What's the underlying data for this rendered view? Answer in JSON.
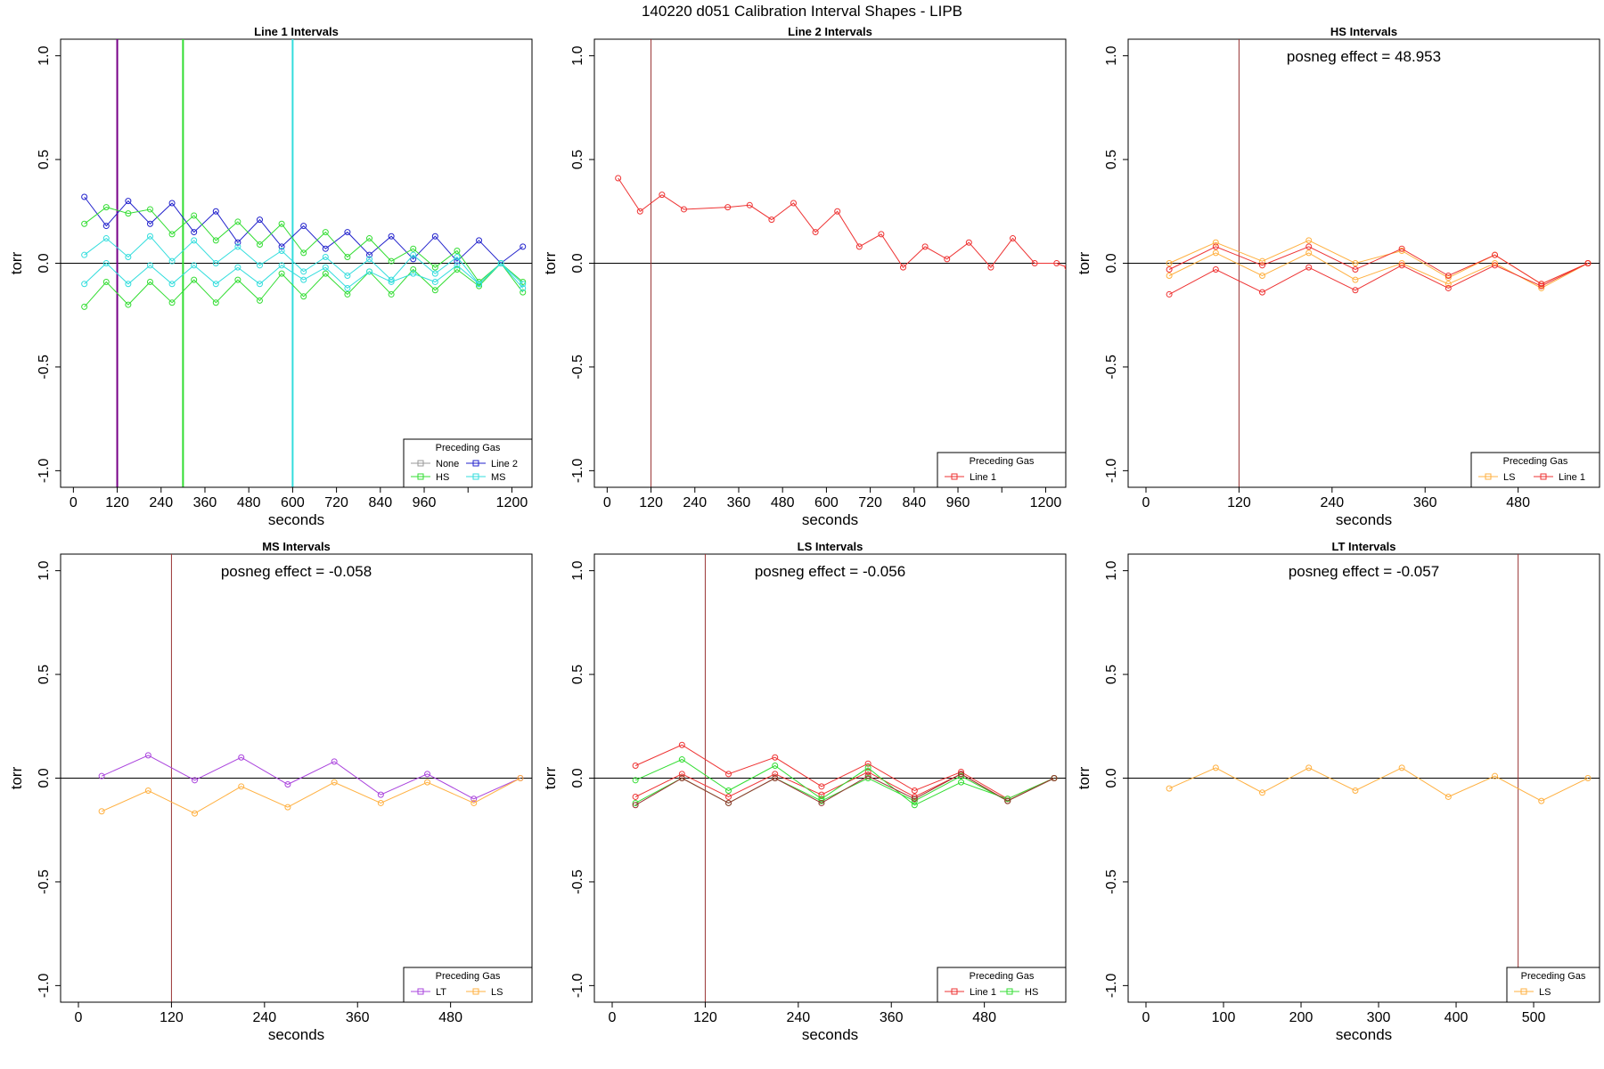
{
  "figure": {
    "title": "140220   d051   Calibration Interval Shapes - LIPB"
  },
  "colors": {
    "None": "#999999",
    "HS": "#33dd33",
    "Line 2": "#2222cc",
    "MS": "#33dddd",
    "Line 1": "#ee3333",
    "LS": "#ffb040",
    "LT": "#aa44dd",
    "dark_red": "#993333",
    "purple_vline": "#770088",
    "black": "#000000"
  },
  "chart_data": [
    {
      "type": "line",
      "title": "Line 1 Intervals",
      "xlabel": "seconds",
      "ylabel": "torr",
      "xlim": [
        -35,
        1255
      ],
      "ylim": [
        -1.08,
        1.08
      ],
      "xticks": [
        0,
        120,
        240,
        360,
        480,
        600,
        720,
        840,
        960,
        1080,
        1200
      ],
      "xtick_labels": [
        "0",
        "120",
        "240",
        "360",
        "480",
        "600",
        "720",
        "840",
        "960",
        "",
        "1200"
      ],
      "yticks": [
        -1.0,
        -0.5,
        0.0,
        0.5,
        1.0
      ],
      "ytick_labels": [
        "-1.0",
        "-0.5",
        "0.0",
        "0.5",
        "1.0"
      ],
      "hline": 0,
      "vlines": [
        {
          "x": 120,
          "color": "purple_vline"
        },
        {
          "x": 300,
          "color": "HS"
        },
        {
          "x": 600,
          "color": "MS"
        }
      ],
      "annotation": "",
      "legend": {
        "title": "Preceding Gas",
        "position": "bottom-right",
        "cols": 2,
        "entries": [
          "None",
          "Line 2",
          "HS",
          "MS"
        ]
      },
      "series": [
        {
          "color": "Line 2",
          "x": [
            30,
            90,
            150,
            210,
            270,
            330,
            390,
            450,
            510,
            570,
            630,
            690,
            750,
            810,
            870,
            930,
            990,
            1050,
            1110,
            1170,
            1230
          ],
          "y": [
            0.32,
            0.18,
            0.3,
            0.19,
            0.29,
            0.15,
            0.25,
            0.1,
            0.21,
            0.08,
            0.18,
            0.07,
            0.15,
            0.04,
            0.13,
            0.02,
            0.13,
            0.01,
            0.11,
            0.0,
            0.08
          ]
        },
        {
          "color": "HS",
          "x": [
            30,
            90,
            150,
            210,
            270,
            330,
            390,
            450,
            510,
            570,
            630,
            690,
            750,
            810,
            870,
            930,
            990,
            1050,
            1110,
            1170,
            1230
          ],
          "y": [
            0.19,
            0.27,
            0.24,
            0.26,
            0.14,
            0.23,
            0.11,
            0.2,
            0.09,
            0.19,
            0.05,
            0.15,
            0.03,
            0.12,
            0.01,
            0.07,
            -0.02,
            0.06,
            -0.09,
            0.0,
            -0.09
          ]
        },
        {
          "color": "HS",
          "x": [
            30,
            90,
            150,
            210,
            270,
            330,
            390,
            450,
            510,
            570,
            630,
            690,
            750,
            810,
            870,
            930,
            990,
            1050,
            1110,
            1170,
            1230
          ],
          "y": [
            -0.21,
            -0.09,
            -0.2,
            -0.09,
            -0.19,
            -0.08,
            -0.19,
            -0.08,
            -0.18,
            -0.05,
            -0.16,
            -0.05,
            -0.15,
            -0.04,
            -0.15,
            -0.03,
            -0.13,
            -0.03,
            -0.11,
            0.0,
            -0.14
          ]
        },
        {
          "color": "MS",
          "x": [
            30,
            90,
            150,
            210,
            270,
            330,
            390,
            450,
            510,
            570,
            630,
            690,
            750,
            810,
            870,
            930,
            990,
            1050,
            1110,
            1170,
            1230
          ],
          "y": [
            0.04,
            0.12,
            0.03,
            0.13,
            0.01,
            0.11,
            0.0,
            0.08,
            -0.01,
            0.06,
            -0.04,
            0.03,
            -0.06,
            0.02,
            -0.08,
            0.04,
            -0.05,
            0.03,
            -0.1,
            0.0,
            -0.1
          ]
        },
        {
          "color": "MS",
          "x": [
            30,
            90,
            150,
            210,
            270,
            330,
            390,
            450,
            510,
            570,
            630,
            690,
            750,
            810,
            870,
            930,
            990,
            1050,
            1110,
            1170,
            1230
          ],
          "y": [
            -0.1,
            0.0,
            -0.1,
            -0.01,
            -0.1,
            -0.01,
            -0.1,
            -0.02,
            -0.1,
            -0.01,
            -0.08,
            -0.02,
            -0.12,
            -0.04,
            -0.09,
            -0.05,
            -0.09,
            -0.01,
            -0.1,
            0.0,
            -0.12
          ]
        }
      ]
    },
    {
      "type": "line",
      "title": "Line 2 Intervals",
      "xlabel": "seconds",
      "ylabel": "torr",
      "xlim": [
        -35,
        1255
      ],
      "ylim": [
        -1.08,
        1.08
      ],
      "xticks": [
        0,
        120,
        240,
        360,
        480,
        600,
        720,
        840,
        960,
        1080,
        1200
      ],
      "xtick_labels": [
        "0",
        "120",
        "240",
        "360",
        "480",
        "600",
        "720",
        "840",
        "960",
        "",
        "1200"
      ],
      "yticks": [
        -1.0,
        -0.5,
        0.0,
        0.5,
        1.0
      ],
      "ytick_labels": [
        "-1.0",
        "-0.5",
        "0.0",
        "0.5",
        "1.0"
      ],
      "hline": 0,
      "vlines": [
        {
          "x": 120,
          "color": "dark_red"
        }
      ],
      "annotation": "",
      "legend": {
        "title": "Preceding Gas",
        "position": "bottom-right",
        "cols": 1,
        "entries": [
          "Line 1"
        ]
      },
      "series": [
        {
          "color": "Line 1",
          "x": [
            30,
            90,
            150,
            210,
            330,
            390,
            450,
            510,
            570,
            630,
            690,
            750,
            810,
            870,
            930,
            990,
            1050,
            1110,
            1170,
            1230,
            1260
          ],
          "y": [
            0.41,
            0.25,
            0.33,
            0.26,
            0.27,
            0.28,
            0.21,
            0.29,
            0.15,
            0.25,
            0.08,
            0.14,
            -0.02,
            0.08,
            0.02,
            0.1,
            -0.02,
            0.12,
            0.0,
            0.0,
            -0.02
          ]
        }
      ]
    },
    {
      "type": "line",
      "title": "HS Intervals",
      "xlabel": "seconds",
      "ylabel": "torr",
      "xlim": [
        -23,
        585
      ],
      "ylim": [
        -1.08,
        1.08
      ],
      "xticks": [
        0,
        120,
        240,
        360,
        480
      ],
      "xtick_labels": [
        "0",
        "120",
        "240",
        "360",
        "480"
      ],
      "yticks": [
        -1.0,
        -0.5,
        0.0,
        0.5,
        1.0
      ],
      "ytick_labels": [
        "-1.0",
        "-0.5",
        "0.0",
        "0.5",
        "1.0"
      ],
      "hline": 0,
      "vlines": [
        {
          "x": 120,
          "color": "dark_red"
        }
      ],
      "annotation": "posneg effect = 48.953",
      "legend": {
        "title": "Preceding Gas",
        "position": "bottom-right",
        "cols": 2,
        "entries": [
          "LS",
          "Line 1"
        ]
      },
      "series": [
        {
          "color": "LS",
          "x": [
            30,
            90,
            150,
            210,
            270,
            330,
            390,
            450,
            510,
            570
          ],
          "y": [
            -0.06,
            0.05,
            -0.06,
            0.05,
            -0.08,
            0.0,
            -0.1,
            0.0,
            -0.12,
            0.0
          ]
        },
        {
          "color": "LS",
          "x": [
            30,
            90,
            150,
            210,
            270,
            330,
            390,
            450,
            510,
            570
          ],
          "y": [
            0.0,
            0.1,
            0.01,
            0.11,
            0.0,
            0.06,
            -0.07,
            0.04,
            -0.1,
            0.0
          ]
        },
        {
          "color": "Line 1",
          "x": [
            30,
            90,
            150,
            210,
            270,
            330,
            390,
            450,
            510,
            570
          ],
          "y": [
            -0.15,
            -0.03,
            -0.14,
            -0.02,
            -0.13,
            -0.01,
            -0.12,
            -0.01,
            -0.11,
            0.0
          ]
        },
        {
          "color": "Line 1",
          "x": [
            30,
            90,
            150,
            210,
            270,
            330,
            390,
            450,
            510,
            570
          ],
          "y": [
            -0.03,
            0.08,
            -0.01,
            0.08,
            -0.03,
            0.07,
            -0.06,
            0.04,
            -0.1,
            0.0
          ]
        }
      ]
    },
    {
      "type": "line",
      "title": "MS Intervals",
      "xlabel": "seconds",
      "ylabel": "torr",
      "xlim": [
        -23,
        585
      ],
      "ylim": [
        -1.08,
        1.08
      ],
      "xticks": [
        0,
        120,
        240,
        360,
        480
      ],
      "xtick_labels": [
        "0",
        "120",
        "240",
        "360",
        "480"
      ],
      "yticks": [
        -1.0,
        -0.5,
        0.0,
        0.5,
        1.0
      ],
      "ytick_labels": [
        "-1.0",
        "-0.5",
        "0.0",
        "0.5",
        "1.0"
      ],
      "hline": 0,
      "vlines": [
        {
          "x": 120,
          "color": "dark_red"
        }
      ],
      "annotation": "posneg effect = -0.058",
      "legend": {
        "title": "Preceding Gas",
        "position": "bottom-right",
        "cols": 2,
        "entries": [
          "LT",
          "LS"
        ]
      },
      "series": [
        {
          "color": "LT",
          "x": [
            30,
            90,
            150,
            210,
            270,
            330,
            390,
            450,
            510,
            570
          ],
          "y": [
            0.01,
            0.11,
            -0.01,
            0.1,
            -0.03,
            0.08,
            -0.08,
            0.02,
            -0.1,
            0.0
          ]
        },
        {
          "color": "LS",
          "x": [
            30,
            90,
            150,
            210,
            270,
            330,
            390,
            450,
            510,
            570
          ],
          "y": [
            -0.16,
            -0.06,
            -0.17,
            -0.04,
            -0.14,
            -0.02,
            -0.12,
            -0.02,
            -0.12,
            0.0
          ]
        }
      ]
    },
    {
      "type": "line",
      "title": "LS Intervals",
      "xlabel": "seconds",
      "ylabel": "torr",
      "xlim": [
        -23,
        585
      ],
      "ylim": [
        -1.08,
        1.08
      ],
      "xticks": [
        0,
        120,
        240,
        360,
        480
      ],
      "xtick_labels": [
        "0",
        "120",
        "240",
        "360",
        "480"
      ],
      "yticks": [
        -1.0,
        -0.5,
        0.0,
        0.5,
        1.0
      ],
      "ytick_labels": [
        "-1.0",
        "-0.5",
        "0.0",
        "0.5",
        "1.0"
      ],
      "hline": 0,
      "vlines": [
        {
          "x": 120,
          "color": "dark_red"
        }
      ],
      "annotation": "posneg effect = -0.056",
      "legend": {
        "title": "Preceding Gas",
        "position": "bottom-right",
        "cols": 2,
        "entries": [
          "Line 1",
          "HS"
        ]
      },
      "series": [
        {
          "color": "Line 1",
          "x": [
            30,
            90,
            150,
            210,
            270,
            330,
            390,
            450,
            510,
            570
          ],
          "y": [
            0.06,
            0.16,
            0.02,
            0.1,
            -0.04,
            0.07,
            -0.06,
            0.03,
            -0.1,
            0.0
          ]
        },
        {
          "color": "Line 1",
          "x": [
            30,
            90,
            150,
            210,
            270,
            330,
            390,
            450,
            510,
            570
          ],
          "y": [
            -0.09,
            0.02,
            -0.09,
            0.02,
            -0.08,
            0.03,
            -0.09,
            0.02,
            -0.11,
            0.0
          ]
        },
        {
          "color": "HS",
          "x": [
            30,
            90,
            150,
            210,
            270,
            330,
            390,
            450,
            510,
            570
          ],
          "y": [
            -0.01,
            0.09,
            -0.06,
            0.06,
            -0.1,
            0.05,
            -0.13,
            -0.02,
            -0.1,
            0.0
          ]
        },
        {
          "color": "HS",
          "x": [
            30,
            90,
            150,
            210,
            270,
            330,
            390,
            450,
            510,
            570
          ],
          "y": [
            -0.12,
            0.0,
            -0.12,
            0.0,
            -0.11,
            0.0,
            -0.11,
            0.01,
            -0.11,
            0.0
          ]
        },
        {
          "color": "dark_red",
          "x": [
            30,
            90,
            150,
            210,
            270,
            330,
            390,
            450,
            510,
            570
          ],
          "y": [
            -0.13,
            0.0,
            -0.12,
            0.0,
            -0.12,
            0.01,
            -0.1,
            0.02,
            -0.11,
            0.0
          ]
        }
      ]
    },
    {
      "type": "line",
      "title": "LT Intervals",
      "xlabel": "seconds",
      "ylabel": "torr",
      "xlim": [
        -23,
        585
      ],
      "ylim": [
        -1.08,
        1.08
      ],
      "xticks": [
        0,
        100,
        200,
        300,
        400,
        500
      ],
      "xtick_labels": [
        "0",
        "100",
        "200",
        "300",
        "400",
        "500"
      ],
      "yticks": [
        -1.0,
        -0.5,
        0.0,
        0.5,
        1.0
      ],
      "ytick_labels": [
        "-1.0",
        "-0.5",
        "0.0",
        "0.5",
        "1.0"
      ],
      "hline": 0,
      "vlines": [
        {
          "x": 480,
          "color": "dark_red"
        }
      ],
      "annotation": "posneg effect = -0.057",
      "legend": {
        "title": "Preceding Gas",
        "position": "bottom-right",
        "cols": 1,
        "entries": [
          "LS"
        ]
      },
      "series": [
        {
          "color": "LS",
          "x": [
            30,
            90,
            150,
            210,
            270,
            330,
            390,
            450,
            510,
            570
          ],
          "y": [
            -0.05,
            0.05,
            -0.07,
            0.05,
            -0.06,
            0.05,
            -0.09,
            0.01,
            -0.11,
            0.0
          ]
        }
      ]
    }
  ]
}
